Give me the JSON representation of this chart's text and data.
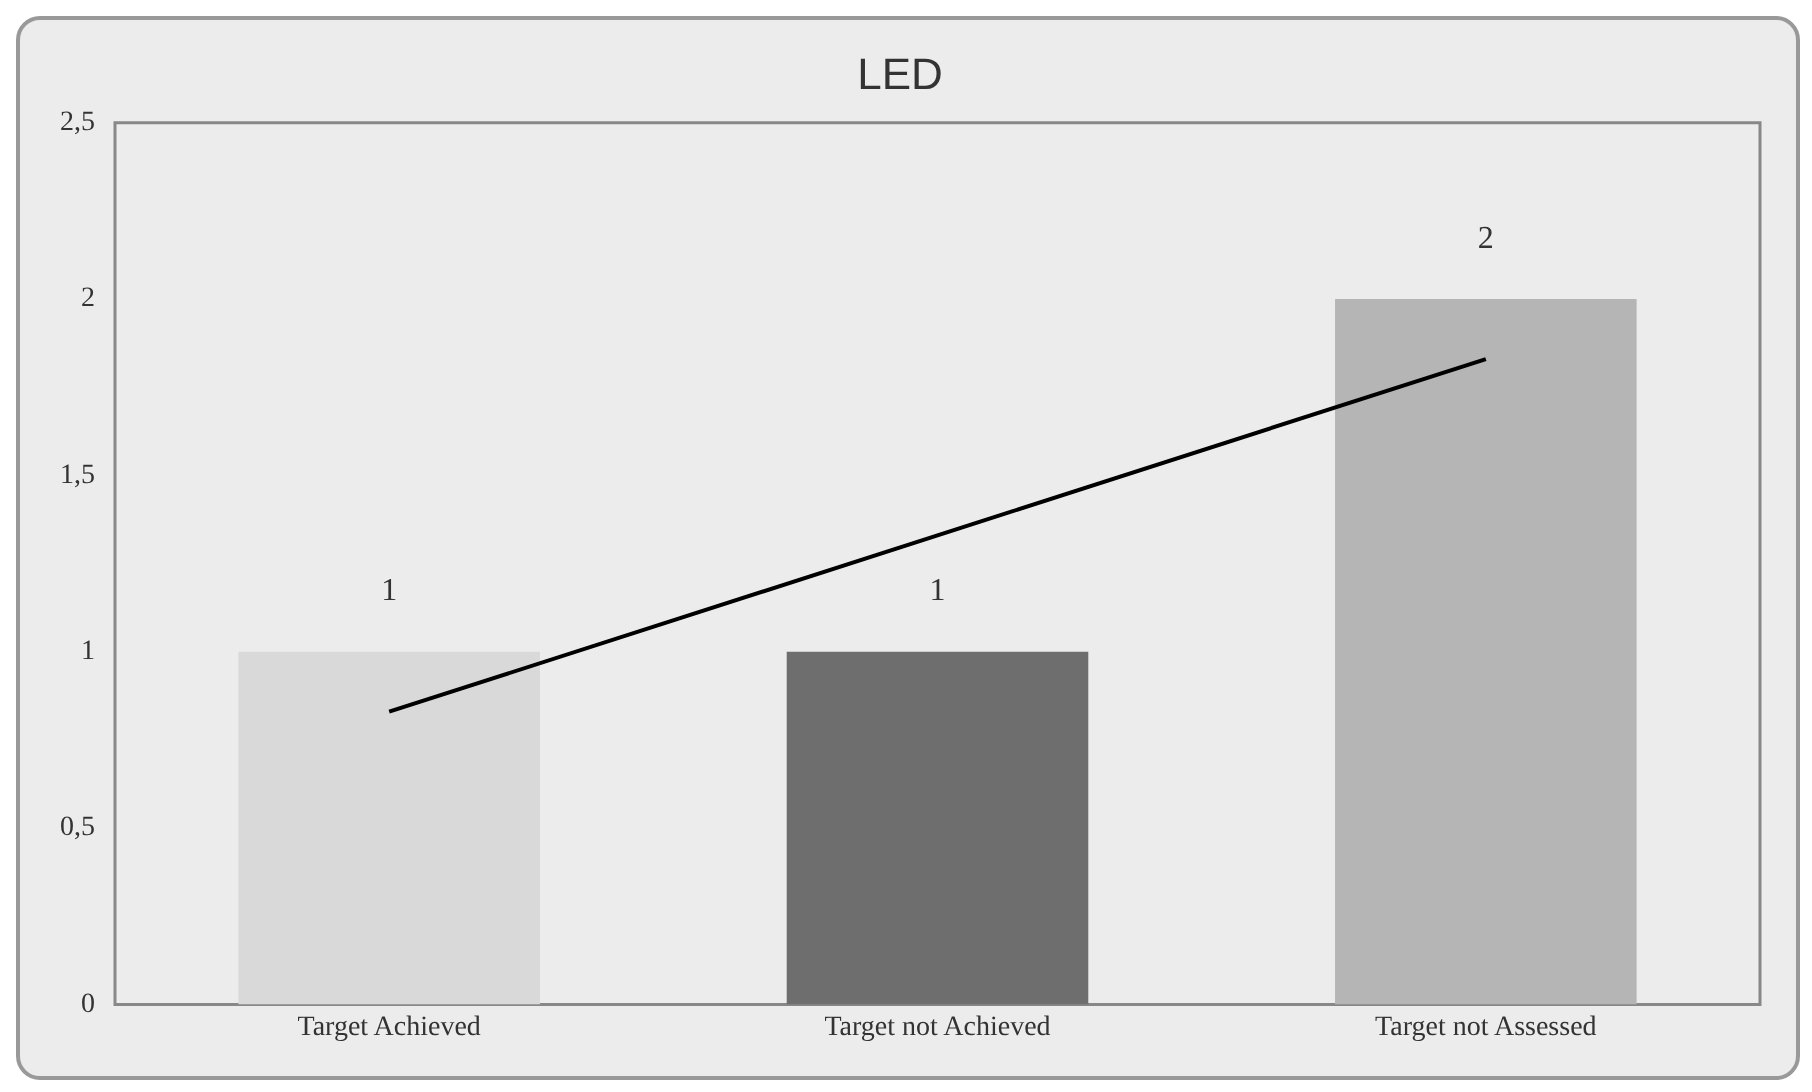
{
  "chart_data": {
    "type": "bar",
    "title": "LED",
    "categories": [
      "Target Achieved",
      "Target not Achieved",
      "Target not Assessed"
    ],
    "series": [
      {
        "colors": [
          "#d9d9d9",
          "#6e6e6e",
          "#b5b5b5"
        ],
        "values": [
          1,
          1,
          2
        ],
        "value_labels": [
          "1",
          "1",
          "2"
        ]
      },
      {
        "type": "line",
        "color": "#000000",
        "values": [
          0.83,
          1.33,
          1.83
        ]
      }
    ],
    "ylim": [
      0,
      2.5
    ],
    "yticks": [
      0,
      {
        "value": 0.5,
        "label": "0,5"
      },
      1,
      {
        "value": 1.5,
        "label": "1,5"
      },
      2,
      {
        "value": 2.5,
        "label": "2,5"
      }
    ],
    "grid": false,
    "legend": false
  }
}
